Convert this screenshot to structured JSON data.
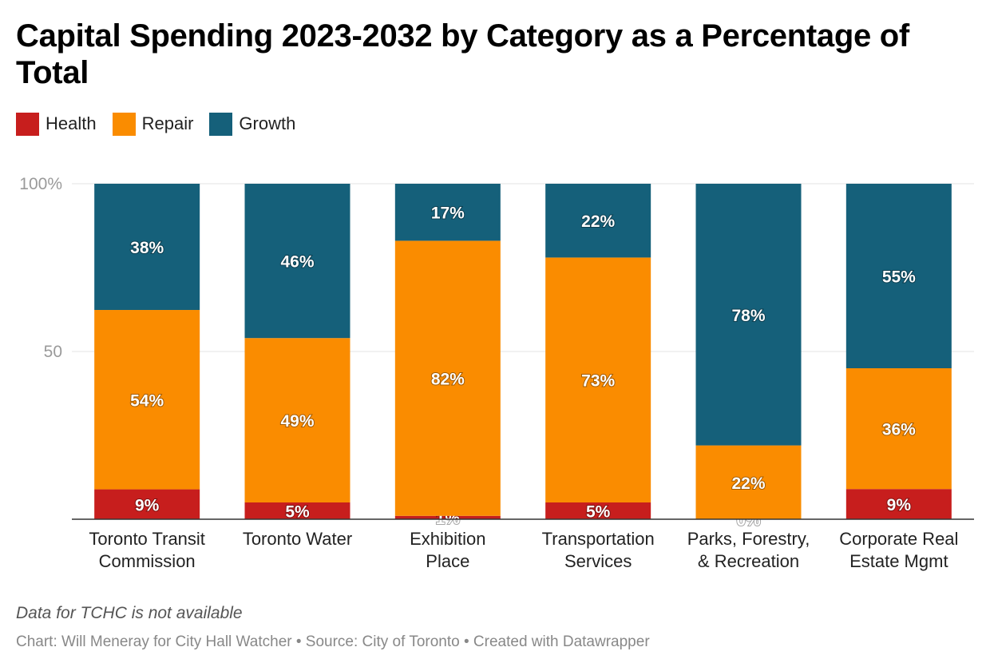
{
  "title": "Capital Spending 2023-2032 by Category as a Percentage of Total",
  "legend": [
    {
      "name": "Health",
      "color": "#c71e1d"
    },
    {
      "name": "Repair",
      "color": "#fa8c00"
    },
    {
      "name": "Growth",
      "color": "#15607a"
    }
  ],
  "note": "Data for TCHC is not available",
  "credit": "Chart: Will Meneray for City Hall Watcher • Source: City of Toronto • Created with Datawrapper",
  "chart_data": {
    "type": "bar",
    "stacked": true,
    "categories": [
      [
        "Toronto Transit",
        "Commission"
      ],
      [
        "Toronto Water"
      ],
      [
        "Exhibition",
        "Place"
      ],
      [
        "Transportation",
        "Services"
      ],
      [
        "Parks, Forestry,",
        "& Recreation"
      ],
      [
        "Corporate Real",
        "Estate Mgmt"
      ]
    ],
    "series": [
      {
        "name": "Health",
        "values": [
          9,
          5,
          1,
          5,
          0,
          9
        ],
        "labels": [
          "9%",
          "5%",
          "1%",
          "5%",
          "0%",
          "9%"
        ]
      },
      {
        "name": "Repair",
        "values": [
          54,
          49,
          82,
          73,
          22,
          36
        ],
        "labels": [
          "54%",
          "49%",
          "82%",
          "73%",
          "22%",
          "36%"
        ]
      },
      {
        "name": "Growth",
        "values": [
          38,
          46,
          17,
          22,
          78,
          55
        ],
        "labels": [
          "38%",
          "46%",
          "17%",
          "22%",
          "78%",
          "55%"
        ]
      }
    ],
    "yticks": [
      {
        "value": 100,
        "label": "100%"
      },
      {
        "value": 50,
        "label": "50"
      }
    ],
    "ylim": [
      0,
      100
    ],
    "grid": true,
    "legend_position": "top-left"
  }
}
